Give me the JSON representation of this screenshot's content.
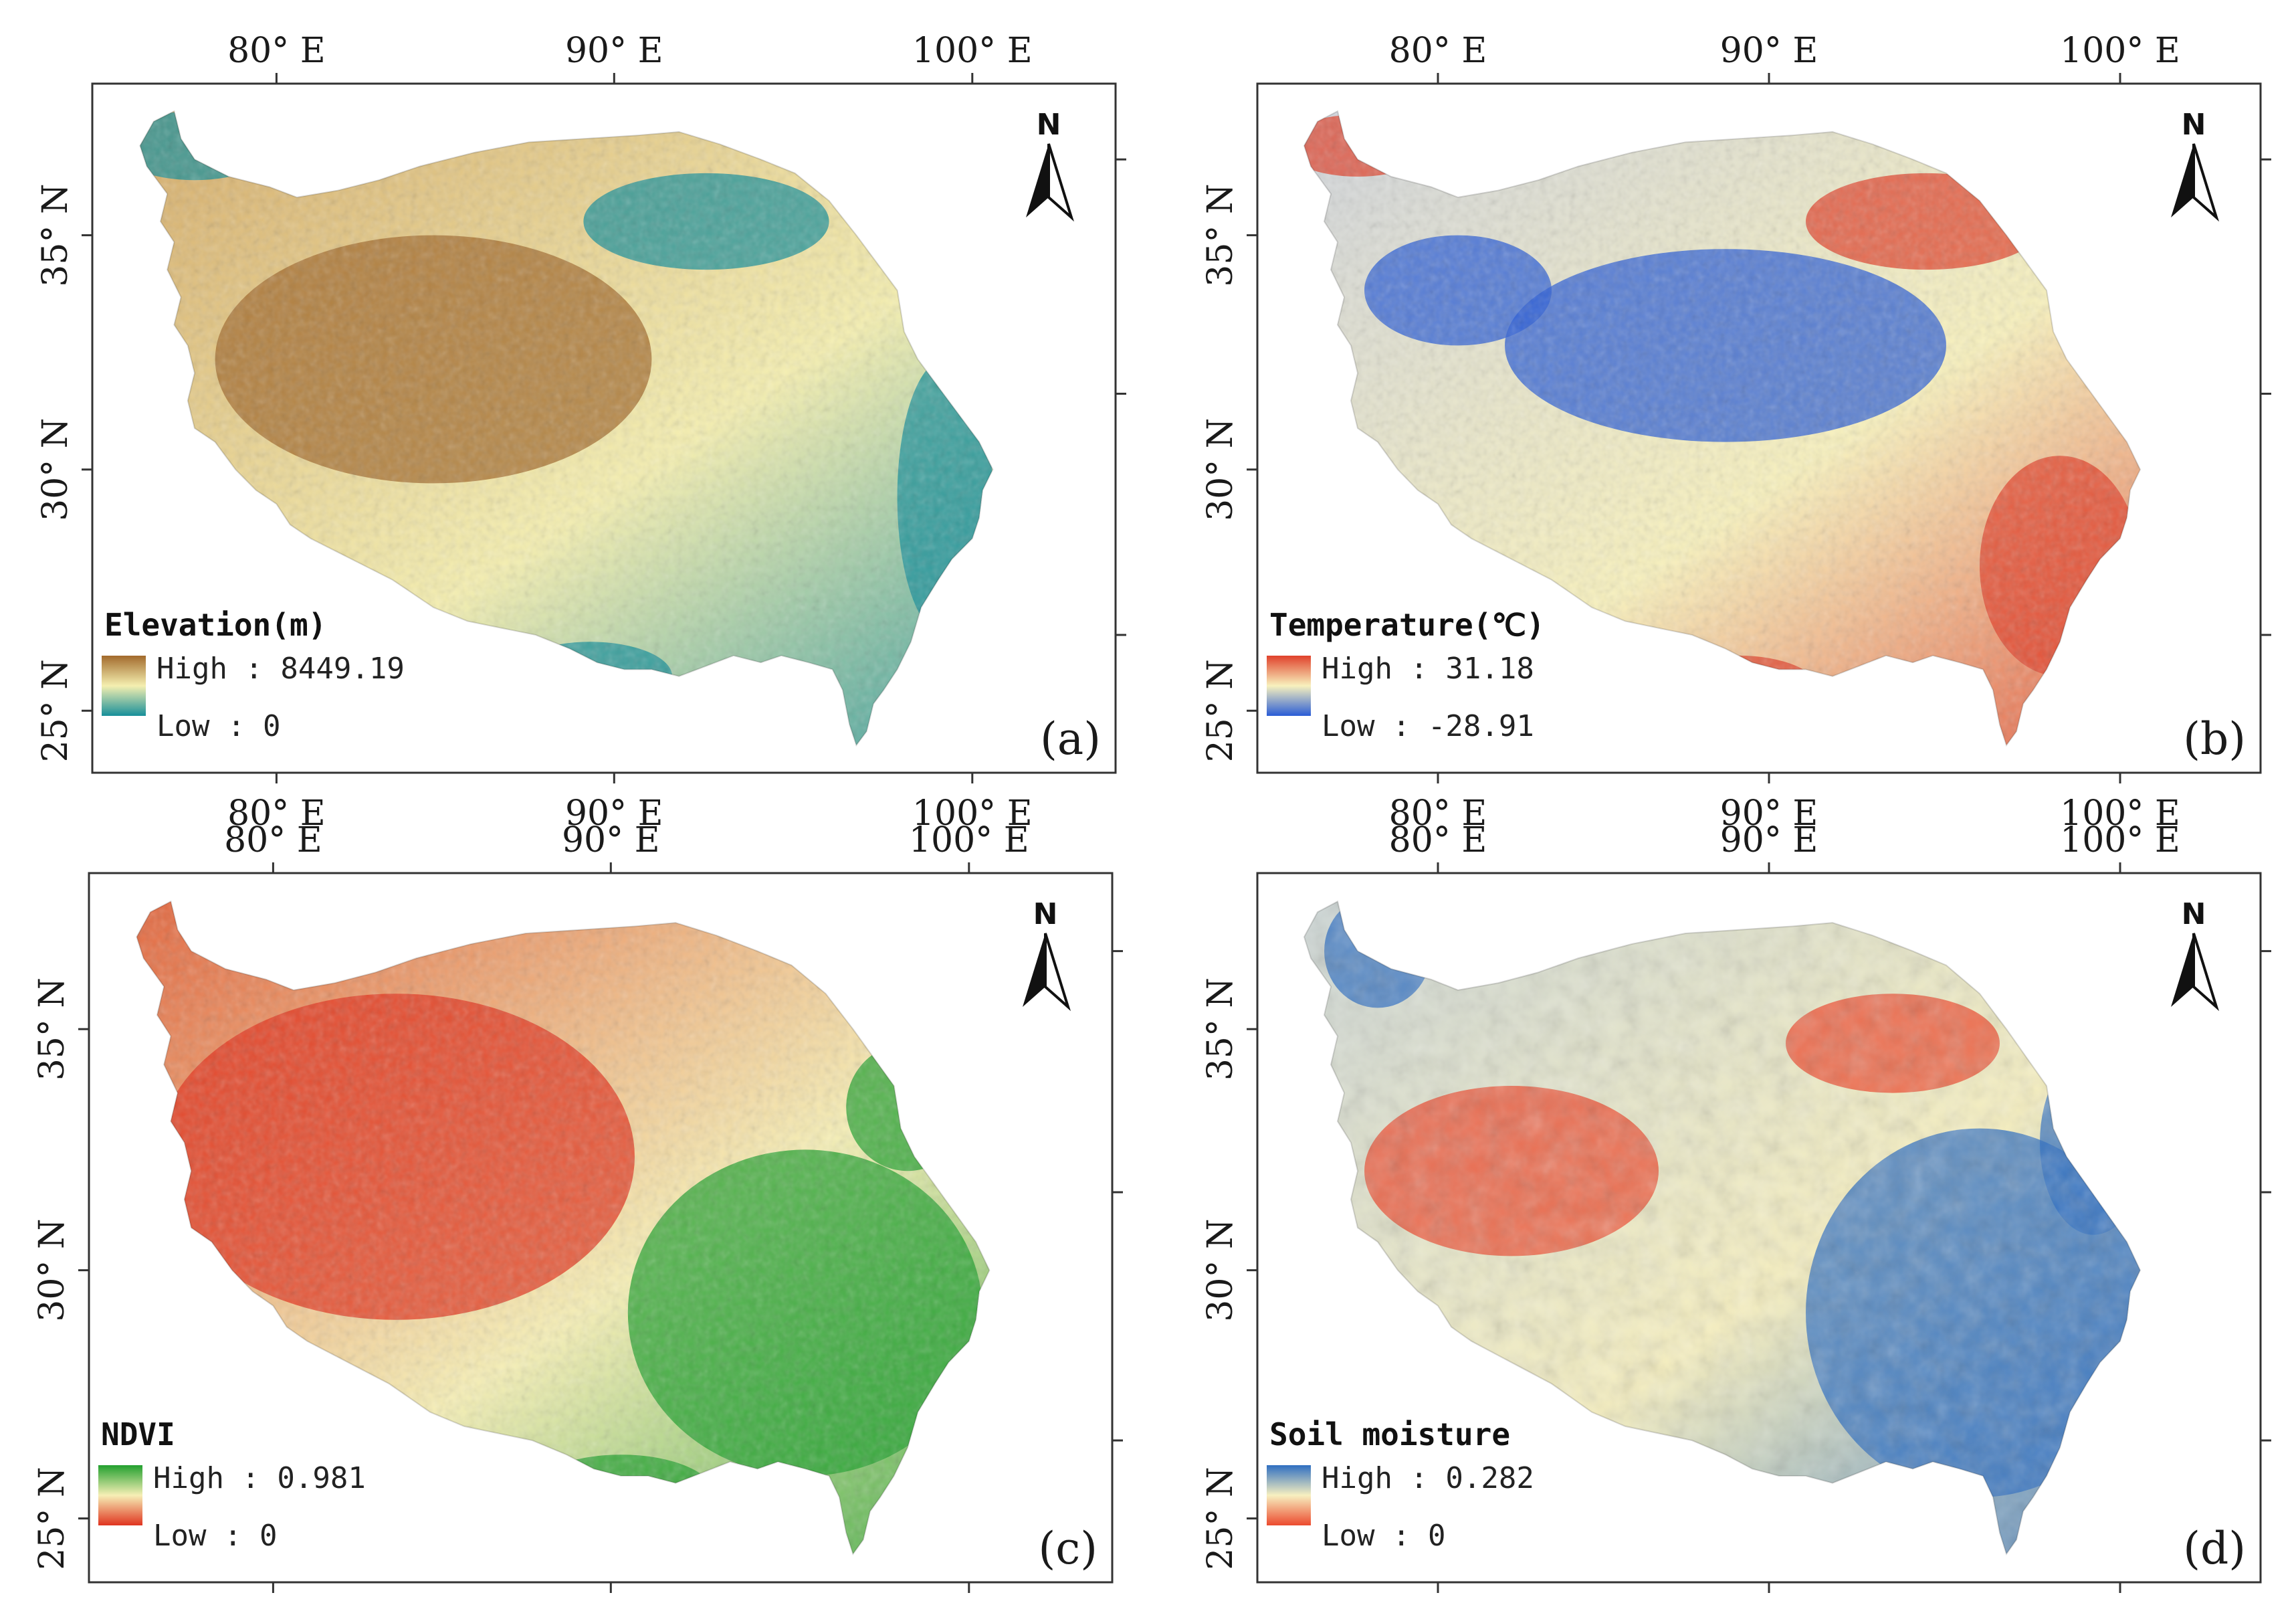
{
  "figure": {
    "panels": [
      {
        "id": "a",
        "letter": "(a)",
        "legend_title": "Elevation(m)",
        "high_label": "High : 8449.19",
        "low_label": "Low : 0",
        "colors": {
          "high": "#a26a2c",
          "mid": "#f5efb0",
          "low": "#178f9a",
          "fill": "#d3a561"
        },
        "x_ticks_top": [
          "80° E",
          "90° E",
          "100° E"
        ],
        "x_ticks_bottom": [
          "80° E",
          "90° E",
          "100° E"
        ],
        "y_ticks": [
          "35° N",
          "30° N",
          "25° N"
        ],
        "north_label": "N"
      },
      {
        "id": "b",
        "letter": "(b)",
        "legend_title": "Temperature(℃)",
        "high_label": "High : 31.18",
        "low_label": "Low : -28.91",
        "colors": {
          "high": "#e0412b",
          "mid": "#f8f1bd",
          "low": "#2a5cd6",
          "fill": "#cdd2e0"
        },
        "x_ticks_top": [
          "80° E",
          "90° E",
          "100° E"
        ],
        "x_ticks_bottom": [
          "80° E",
          "90° E",
          "100° E"
        ],
        "y_ticks": [
          "35° N",
          "30° N",
          "25° N"
        ],
        "north_label": "N"
      },
      {
        "id": "c",
        "letter": "(c)",
        "legend_title": "NDVI",
        "high_label": "High : 0.981",
        "low_label": "Low : 0",
        "colors": {
          "high": "#22a02f",
          "mid": "#f6efb6",
          "low": "#e0341f",
          "fill": "#e25a33"
        },
        "x_ticks_top": [
          "80° E",
          "90° E",
          "100° E"
        ],
        "x_ticks_bottom": [],
        "y_ticks": [
          "35° N",
          "30° N",
          "25° N"
        ],
        "north_label": "N"
      },
      {
        "id": "d",
        "letter": "(d)",
        "legend_title": "Soil moisture",
        "high_label": "High : 0.282",
        "low_label": "Low : 0",
        "colors": {
          "high": "#2f6fc1",
          "mid": "#f7f0c0",
          "low": "#ec4a2e",
          "fill": "#c9d4d8"
        },
        "x_ticks_top": [
          "80° E",
          "90° E",
          "100° E"
        ],
        "x_ticks_bottom": [],
        "y_ticks": [
          "35° N",
          "30° N",
          "25° N"
        ],
        "north_label": "N"
      }
    ]
  }
}
